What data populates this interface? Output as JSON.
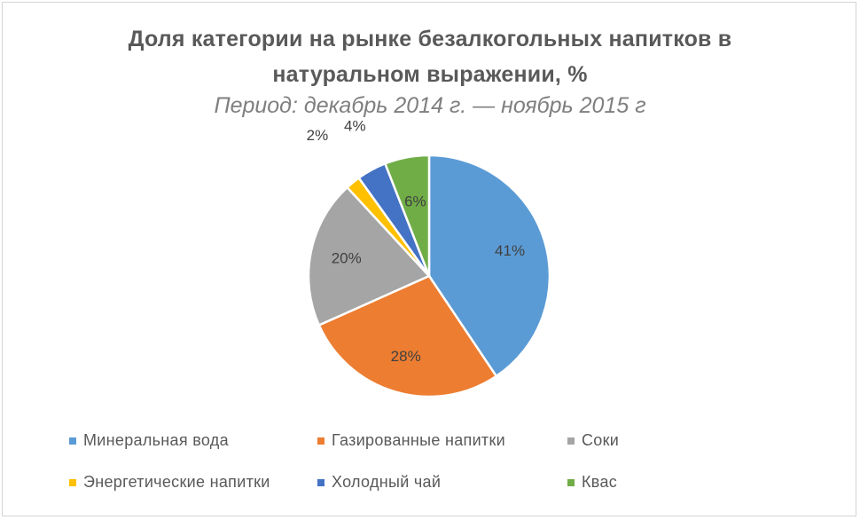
{
  "chart_data": {
    "type": "pie",
    "title_line1": "Доля категории на рынке безалкогольных напитков в",
    "title_line2": "натуральном выражении, %",
    "subtitle": "Период: декабрь 2014 г. — ноябрь 2015 г",
    "categories": [
      "Минеральная вода",
      "Газированные напитки",
      "Соки",
      "Энергетические напитки",
      "Холодный чай",
      "Квас"
    ],
    "values": [
      41,
      28,
      20,
      2,
      4,
      6
    ],
    "data_labels": [
      "41%",
      "28%",
      "20%",
      "2%",
      "4%",
      "6%"
    ],
    "colors": [
      "#5b9bd5",
      "#ed7d31",
      "#a5a5a5",
      "#ffc000",
      "#4472c4",
      "#70ad47"
    ],
    "legend_position": "bottom"
  }
}
